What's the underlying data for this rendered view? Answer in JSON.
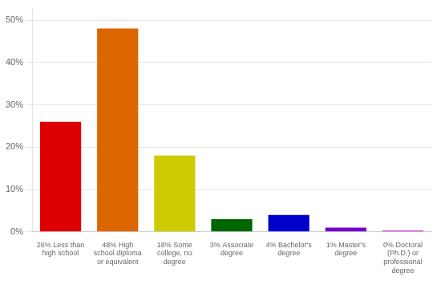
{
  "chart_data": {
    "type": "bar",
    "categories": [
      "26% Less than\nhigh school",
      "48% High\nschool diploma\nor equivalent",
      "18% Some\ncollege, no\ndegree",
      "3% Associate\ndegree",
      "4% Bachelor's\ndegree",
      "1% Master's\ndegree",
      "0% Doctoral\n(Ph.D.) or\nprofessional\ndegree"
    ],
    "values": [
      26,
      48,
      18,
      3,
      4,
      1,
      0.3
    ],
    "colors": [
      "#dd0000",
      "#dd6600",
      "#cccc00",
      "#006600",
      "#0000cc",
      "#7700cc",
      "#dd00dd"
    ],
    "ylim": [
      0,
      52.85
    ],
    "yticks": [
      {
        "value": 0,
        "label": "0%"
      },
      {
        "value": 10,
        "label": "10%"
      },
      {
        "value": 20,
        "label": "20%"
      },
      {
        "value": 30,
        "label": "30%"
      },
      {
        "value": 40,
        "label": "40%"
      },
      {
        "value": 50,
        "label": "50%"
      }
    ],
    "grid": true
  }
}
